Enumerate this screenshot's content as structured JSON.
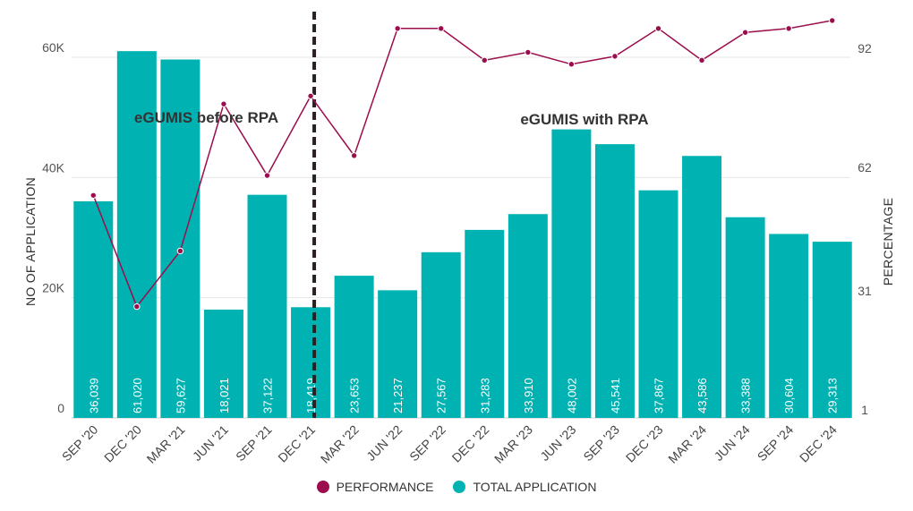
{
  "chart_data": {
    "type": "bar",
    "categories": [
      "SEP '20",
      "DEC '20",
      "MAR '21",
      "JUN '21",
      "SEP '21",
      "DEC '21",
      "MAR '22",
      "JUN '22",
      "SEP '22",
      "DEC '22",
      "MAR '23",
      "JUN '23",
      "SEP '23",
      "DEC '23",
      "MAR '24",
      "JUN '24",
      "SEP '24",
      "DEC '24"
    ],
    "series": [
      {
        "name": "TOTAL APPLICATION",
        "kind": "bar",
        "axis": "left",
        "color": "#00b2b2",
        "values": [
          36039,
          61020,
          59627,
          18021,
          37122,
          18419,
          23653,
          21237,
          27567,
          31283,
          33910,
          48002,
          45541,
          37867,
          43586,
          33388,
          30604,
          29313
        ],
        "labels": [
          "36,039",
          "61,020",
          "59,627",
          "18,021",
          "37,122",
          "18,419",
          "23,653",
          "21,237",
          "27,567",
          "31,283",
          "33,910",
          "48,002",
          "45,541",
          "37,867",
          "43,586",
          "33,388",
          "30,604",
          "29,313"
        ]
      },
      {
        "name": "PERFORMANCE",
        "kind": "line",
        "axis": "right",
        "color": "#9b0d4c",
        "values": [
          55,
          27,
          41,
          78,
          60,
          80,
          65,
          97,
          97,
          89,
          91,
          88,
          90,
          97,
          89,
          96,
          97,
          99
        ]
      }
    ],
    "left_axis": {
      "label": "NO OF APPLICATION",
      "ylim": [
        0,
        70000
      ],
      "ticks": [
        0,
        20000,
        40000,
        60000
      ],
      "tick_labels": [
        "0",
        "20K",
        "40K",
        "60K"
      ]
    },
    "right_axis": {
      "label": "PERCENTAGE",
      "ticks": [
        1,
        31,
        62,
        92
      ],
      "tick_labels": [
        "1",
        "31",
        "62",
        "92"
      ]
    },
    "annotations": [
      {
        "text": "eGUMIS before RPA",
        "category_index": 2.6
      },
      {
        "text": "eGUMIS with RPA",
        "category_index": 11.3
      }
    ],
    "divider_after_category": "DEC '21",
    "grid": true,
    "legend_position": "bottom"
  }
}
